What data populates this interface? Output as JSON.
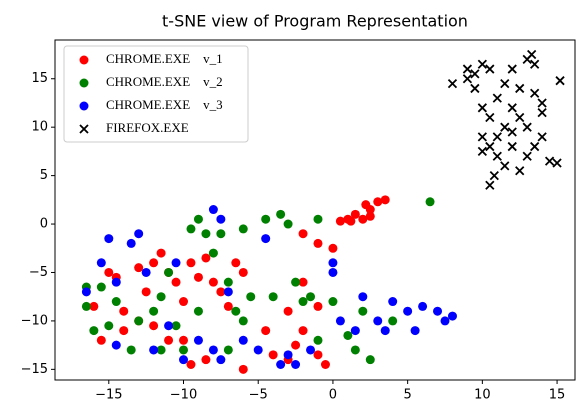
{
  "chart_data": {
    "type": "scatter",
    "title": "t-SNE view of Program Representation",
    "xlim": [
      -18.6,
      16.2
    ],
    "ylim": [
      -16.1,
      19.0
    ],
    "xticks": [
      {
        "value": -15,
        "label": "−15"
      },
      {
        "value": -10,
        "label": "−10"
      },
      {
        "value": -5,
        "label": "−5"
      },
      0,
      5,
      10,
      15
    ],
    "yticks": [
      {
        "value": -15,
        "label": "−15"
      },
      {
        "value": -10,
        "label": "−10"
      },
      {
        "value": -5,
        "label": "−5"
      },
      0,
      5,
      10,
      15
    ],
    "legend": "upper left",
    "series": [
      {
        "name": "CHROME.EXE    v_1",
        "color": "#ff0000",
        "marker": "o",
        "x": [
          0.5,
          1,
          1.5,
          2,
          2.2,
          2.5,
          3,
          3.5,
          2.5,
          1.2,
          0,
          -1,
          -2,
          -16,
          -15.5,
          -15,
          -14.5,
          -14,
          -13,
          -12.5,
          -12,
          -11.5,
          -11,
          -10.5,
          -10,
          -9.5,
          -9,
          -8.5,
          -8,
          -7.5,
          -7,
          -6.5,
          -6,
          -10,
          -9.5,
          -8.5,
          -6,
          -4,
          -3,
          -2,
          -2.5,
          -1,
          -0.5,
          -14,
          -13,
          -12,
          -11,
          -4.5,
          -2,
          -3,
          -1
        ],
        "y": [
          0.3,
          0.5,
          1,
          0.5,
          2,
          1.5,
          2.3,
          2.5,
          0.8,
          0.3,
          -2.5,
          -2,
          -1,
          -8.5,
          -12,
          -5,
          -5.5,
          -9,
          -4.5,
          -7,
          -4,
          -3,
          -5,
          -6,
          -8,
          -4,
          -5.5,
          -3.5,
          -6,
          -7,
          -8.5,
          -4,
          -5,
          -12,
          -14.5,
          -14,
          -15,
          -13.5,
          -14,
          -11,
          -12.5,
          -13.5,
          -14.5,
          -11,
          -10,
          -10.5,
          -12,
          -11,
          -6,
          -9,
          -8.5
        ]
      },
      {
        "name": "CHROME.EXE    v_2",
        "color": "#008000",
        "marker": "o",
        "x": [
          -16.5,
          -16.5,
          -16,
          -15.5,
          -15,
          -14.5,
          -13.5,
          -13,
          -12,
          -11.5,
          -11,
          -10.5,
          -10,
          -9.5,
          -9,
          -8.5,
          -8,
          -7.5,
          -7,
          -6.5,
          -6,
          -5.5,
          -7,
          -6,
          -4.5,
          -3.5,
          -3,
          -2.5,
          -2,
          -1.5,
          -1,
          0,
          1,
          1.5,
          2,
          2.5,
          4,
          6.5,
          -11.5,
          -9,
          -4,
          -1
        ],
        "y": [
          -6.5,
          -8.5,
          -11,
          -6.5,
          -10.5,
          -8,
          -13,
          -10,
          -9,
          -7.5,
          -5,
          -10.5,
          -13,
          -0.5,
          0.5,
          -1,
          -3,
          -1,
          -6,
          -9,
          -10,
          -7.5,
          -13,
          -0.5,
          0.5,
          1,
          0,
          -6,
          -8,
          -7.5,
          -12,
          -8,
          -11.5,
          -13,
          -9,
          -14,
          -10,
          2.3,
          -13,
          -9,
          -7.5,
          0.5
        ]
      },
      {
        "name": "CHROME.EXE    v_3",
        "color": "#0000ff",
        "marker": "o",
        "x": [
          -16.5,
          -15.5,
          -15,
          -14.5,
          -14.5,
          -13.5,
          -13,
          -12.5,
          -12,
          -11,
          -10.5,
          -10,
          -9,
          -8,
          -7.5,
          -7,
          -8,
          -7.5,
          -6,
          -5,
          -4.5,
          -3.5,
          -2.5,
          -1.5,
          0,
          0,
          0.5,
          1.5,
          2,
          3,
          3.5,
          4,
          5,
          5.5,
          6,
          7,
          7.5,
          8,
          -3
        ],
        "y": [
          -7,
          -4,
          -1.5,
          -6,
          -12.5,
          -2,
          -1,
          -5,
          -13,
          -10.5,
          -4,
          -14,
          -12,
          1.5,
          0.5,
          -7,
          -13,
          -14,
          -12,
          -13,
          -1.5,
          -14.5,
          -14.5,
          -13,
          -4,
          -5,
          -10,
          -11,
          -7.5,
          -10,
          -11,
          -8,
          -9,
          -11,
          -8.5,
          -9,
          -10,
          -9.5,
          -13.5
        ]
      },
      {
        "name": "FIREFOX.EXE",
        "color": "#000000",
        "marker": "x",
        "x": [
          8,
          9,
          9.5,
          9.5,
          10,
          10,
          10,
          10.5,
          10.5,
          10.5,
          10.8,
          11,
          11,
          11.5,
          11.5,
          12,
          12,
          12,
          12.5,
          12.5,
          13,
          13,
          13,
          13.3,
          13.5,
          14,
          14,
          14.5,
          15,
          15.2,
          10.5,
          9,
          11,
          12.5,
          13.5,
          14,
          13.5,
          11.5,
          10,
          12
        ],
        "y": [
          14.5,
          16,
          15.5,
          14,
          16.5,
          12,
          9,
          11,
          8,
          4,
          5,
          9,
          7,
          10,
          6,
          12,
          8,
          16,
          14,
          11,
          7,
          10,
          17,
          17.5,
          13.5,
          11.5,
          9,
          6.5,
          6.3,
          14.8,
          16,
          15,
          13,
          5.5,
          8,
          12.5,
          16.5,
          14.5,
          7.5,
          9.5
        ]
      }
    ]
  }
}
